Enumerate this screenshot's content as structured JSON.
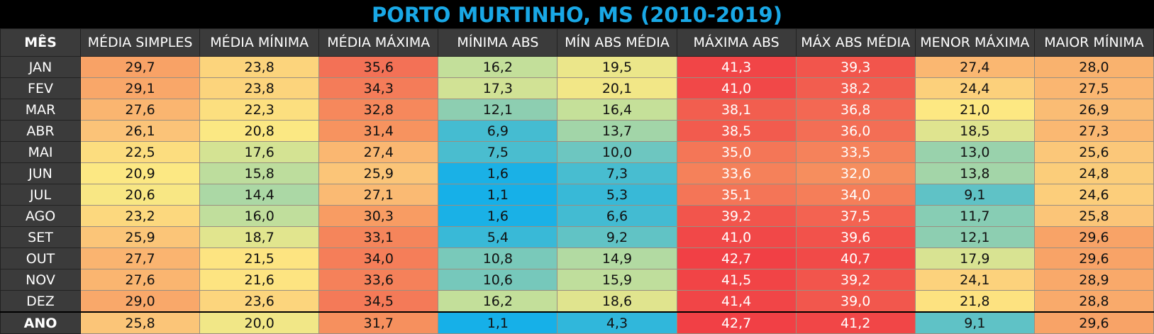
{
  "title": "PORTO MURTINHO, MS (2010-2019)",
  "table": {
    "header": [
      "MÊS",
      "MÉDIA SIMPLES",
      "MÉDIA MÍNIMA",
      "MÉDIA MÁXIMA",
      "MÍNIMA ABS",
      "MÍN ABS MÉDIA",
      "MÁXIMA ABS",
      "MÁX ABS MÉDIA",
      "MENOR MÁXIMA",
      "MAIOR MÍNIMA"
    ],
    "rows": [
      [
        "JAN",
        "29,7",
        "23,8",
        "35,6",
        "16,2",
        "19,5",
        "41,3",
        "39,3",
        "27,4",
        "28,0"
      ],
      [
        "FEV",
        "29,1",
        "23,8",
        "34,3",
        "17,3",
        "20,1",
        "41,0",
        "38,2",
        "24,4",
        "27,5"
      ],
      [
        "MAR",
        "27,6",
        "22,3",
        "32,8",
        "12,1",
        "16,4",
        "38,1",
        "36,8",
        "21,0",
        "26,9"
      ],
      [
        "ABR",
        "26,1",
        "20,8",
        "31,4",
        "6,9",
        "13,7",
        "38,5",
        "36,0",
        "18,5",
        "27,3"
      ],
      [
        "MAI",
        "22,5",
        "17,6",
        "27,4",
        "7,5",
        "10,0",
        "35,0",
        "33,5",
        "13,0",
        "25,6"
      ],
      [
        "JUN",
        "20,9",
        "15,8",
        "25,9",
        "1,6",
        "7,3",
        "33,6",
        "32,0",
        "13,8",
        "24,8"
      ],
      [
        "JUL",
        "20,6",
        "14,4",
        "27,1",
        "1,1",
        "5,3",
        "35,1",
        "34,0",
        "9,1",
        "24,6"
      ],
      [
        "AGO",
        "23,2",
        "16,0",
        "30,3",
        "1,6",
        "6,6",
        "39,2",
        "37,5",
        "11,7",
        "25,8"
      ],
      [
        "SET",
        "25,9",
        "18,7",
        "33,1",
        "5,4",
        "9,2",
        "41,0",
        "39,6",
        "12,1",
        "29,6"
      ],
      [
        "OUT",
        "27,7",
        "21,5",
        "34,0",
        "10,8",
        "14,9",
        "42,7",
        "40,7",
        "17,9",
        "29,6"
      ],
      [
        "NOV",
        "27,6",
        "21,6",
        "33,6",
        "10,6",
        "15,9",
        "41,5",
        "39,2",
        "24,1",
        "28,9"
      ],
      [
        "DEZ",
        "29,0",
        "23,6",
        "34,5",
        "16,2",
        "18,6",
        "41,4",
        "39,0",
        "21,8",
        "28,8"
      ],
      [
        "ANO",
        "25,8",
        "20,0",
        "31,7",
        "1,1",
        "4,3",
        "42,7",
        "41,2",
        "9,1",
        "29,6"
      ]
    ]
  }
}
